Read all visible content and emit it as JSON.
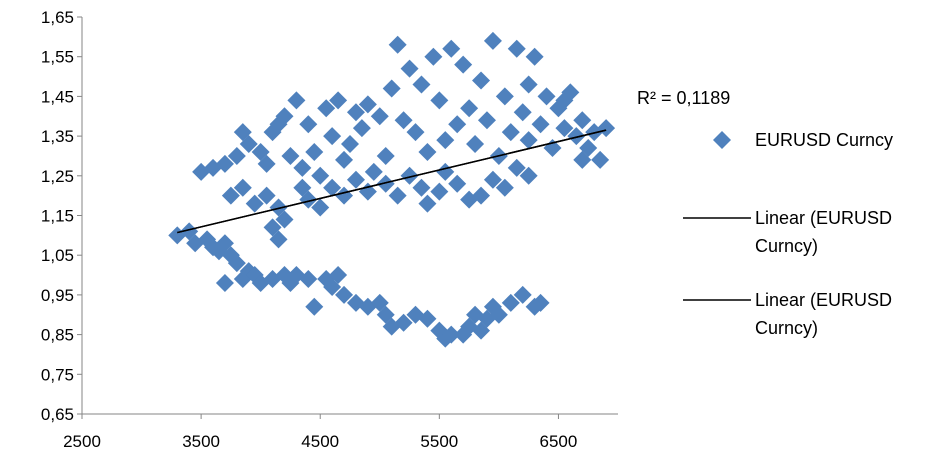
{
  "chart_data": {
    "type": "scatter",
    "xlim": [
      2500,
      7000
    ],
    "ylim": [
      0.65,
      1.65
    ],
    "x_ticks": [
      "2500",
      "3500",
      "4500",
      "5500",
      "6500"
    ],
    "x_tick_values": [
      2500,
      3500,
      4500,
      5500,
      6500
    ],
    "y_ticks": [
      "0,65",
      "0,75",
      "0,85",
      "0,95",
      "1,05",
      "1,15",
      "1,25",
      "1,35",
      "1,45",
      "1,55",
      "1,65"
    ],
    "y_tick_values": [
      0.65,
      0.75,
      0.85,
      0.95,
      1.05,
      1.15,
      1.25,
      1.35,
      1.45,
      1.55,
      1.65
    ],
    "grid": false,
    "legend_position": "right",
    "series": [
      {
        "name": "EURUSD Curncy",
        "marker": "diamond",
        "color": "#4f81bd",
        "points": [
          [
            3300,
            1.1
          ],
          [
            3400,
            1.11
          ],
          [
            3450,
            1.08
          ],
          [
            3550,
            1.09
          ],
          [
            3600,
            1.07
          ],
          [
            3650,
            1.06
          ],
          [
            3700,
            1.08
          ],
          [
            3750,
            1.05
          ],
          [
            3800,
            1.03
          ],
          [
            3900,
            1.01
          ],
          [
            3850,
            0.99
          ],
          [
            3700,
            0.98
          ],
          [
            3950,
            1.0
          ],
          [
            4000,
            0.98
          ],
          [
            4100,
            0.99
          ],
          [
            4200,
            1.0
          ],
          [
            4250,
            0.98
          ],
          [
            4300,
            1.0
          ],
          [
            4400,
            0.99
          ],
          [
            4450,
            0.92
          ],
          [
            4550,
            0.99
          ],
          [
            4600,
            0.97
          ],
          [
            4650,
            1.0
          ],
          [
            4700,
            0.95
          ],
          [
            4800,
            0.93
          ],
          [
            4900,
            0.92
          ],
          [
            5000,
            0.93
          ],
          [
            5050,
            0.9
          ],
          [
            5100,
            0.87
          ],
          [
            5200,
            0.88
          ],
          [
            5300,
            0.9
          ],
          [
            5400,
            0.89
          ],
          [
            5500,
            0.86
          ],
          [
            5550,
            0.84
          ],
          [
            5600,
            0.85
          ],
          [
            5700,
            0.85
          ],
          [
            5750,
            0.87
          ],
          [
            5800,
            0.9
          ],
          [
            5850,
            0.86
          ],
          [
            5900,
            0.89
          ],
          [
            5950,
            0.92
          ],
          [
            6000,
            0.9
          ],
          [
            6100,
            0.93
          ],
          [
            6200,
            0.95
          ],
          [
            6300,
            0.92
          ],
          [
            6350,
            0.93
          ],
          [
            3500,
            1.26
          ],
          [
            3600,
            1.27
          ],
          [
            3700,
            1.28
          ],
          [
            3800,
            1.3
          ],
          [
            3850,
            1.36
          ],
          [
            3900,
            1.33
          ],
          [
            4000,
            1.31
          ],
          [
            4050,
            1.28
          ],
          [
            4100,
            1.36
          ],
          [
            4150,
            1.38
          ],
          [
            4200,
            1.4
          ],
          [
            4300,
            1.44
          ],
          [
            4250,
            1.3
          ],
          [
            4350,
            1.27
          ],
          [
            4400,
            1.38
          ],
          [
            4450,
            1.31
          ],
          [
            4500,
            1.25
          ],
          [
            4550,
            1.42
          ],
          [
            4600,
            1.35
          ],
          [
            4650,
            1.44
          ],
          [
            4700,
            1.29
          ],
          [
            4750,
            1.33
          ],
          [
            4800,
            1.41
          ],
          [
            4850,
            1.37
          ],
          [
            4900,
            1.43
          ],
          [
            4950,
            1.26
          ],
          [
            5000,
            1.4
          ],
          [
            5050,
            1.3
          ],
          [
            5100,
            1.47
          ],
          [
            5150,
            1.58
          ],
          [
            5200,
            1.39
          ],
          [
            5250,
            1.52
          ],
          [
            5300,
            1.36
          ],
          [
            5350,
            1.48
          ],
          [
            5400,
            1.31
          ],
          [
            5450,
            1.55
          ],
          [
            5500,
            1.44
          ],
          [
            5550,
            1.34
          ],
          [
            5600,
            1.57
          ],
          [
            5650,
            1.38
          ],
          [
            5700,
            1.53
          ],
          [
            5750,
            1.42
          ],
          [
            5800,
            1.33
          ],
          [
            5850,
            1.49
          ],
          [
            5900,
            1.39
          ],
          [
            5950,
            1.59
          ],
          [
            6000,
            1.3
          ],
          [
            6050,
            1.45
          ],
          [
            6100,
            1.36
          ],
          [
            6150,
            1.57
          ],
          [
            6200,
            1.41
          ],
          [
            6250,
            1.34
          ],
          [
            6300,
            1.55
          ],
          [
            6350,
            1.38
          ],
          [
            6400,
            1.45
          ],
          [
            6450,
            1.32
          ],
          [
            6500,
            1.42
          ],
          [
            6550,
            1.37
          ],
          [
            6600,
            1.46
          ],
          [
            6650,
            1.35
          ],
          [
            6700,
            1.39
          ],
          [
            6750,
            1.32
          ],
          [
            6800,
            1.36
          ],
          [
            6850,
            1.29
          ],
          [
            6900,
            1.37
          ],
          [
            6700,
            1.29
          ],
          [
            6550,
            1.44
          ],
          [
            6250,
            1.48
          ],
          [
            3750,
            1.2
          ],
          [
            3850,
            1.22
          ],
          [
            3950,
            1.18
          ],
          [
            4050,
            1.2
          ],
          [
            4150,
            1.17
          ],
          [
            4100,
            1.12
          ],
          [
            4150,
            1.09
          ],
          [
            4200,
            1.14
          ],
          [
            4350,
            1.22
          ],
          [
            4400,
            1.19
          ],
          [
            4500,
            1.17
          ],
          [
            4600,
            1.22
          ],
          [
            4700,
            1.2
          ],
          [
            4800,
            1.24
          ],
          [
            4900,
            1.21
          ],
          [
            5050,
            1.23
          ],
          [
            5150,
            1.2
          ],
          [
            5250,
            1.25
          ],
          [
            5350,
            1.22
          ],
          [
            5400,
            1.18
          ],
          [
            5500,
            1.21
          ],
          [
            5550,
            1.26
          ],
          [
            5650,
            1.23
          ],
          [
            5750,
            1.19
          ],
          [
            5850,
            1.2
          ],
          [
            5950,
            1.24
          ],
          [
            6050,
            1.22
          ],
          [
            6150,
            1.27
          ],
          [
            6250,
            1.25
          ]
        ]
      }
    ],
    "trendlines": [
      {
        "name": "Linear (EURUSD Curncy)",
        "x": [
          3300,
          6900
        ],
        "y": [
          1.107,
          1.365
        ],
        "color": "#000000",
        "r_squared_label": "R² = 0,1189"
      },
      {
        "name": "Linear (EURUSD Curncy)",
        "x": [
          3300,
          6900
        ],
        "y": [
          1.107,
          1.365
        ],
        "color": "#000000"
      }
    ]
  },
  "legend": {
    "r_squared": "R² = 0,1189",
    "entries": [
      {
        "label_lines": [
          "EURUSD Curncy"
        ],
        "symbol": "diamond",
        "color": "#4f81bd"
      },
      {
        "label_lines": [
          "Linear (EURUSD",
          "Curncy)"
        ],
        "symbol": "line",
        "color": "#000000"
      },
      {
        "label_lines": [
          "Linear (EURUSD",
          "Curncy)"
        ],
        "symbol": "line",
        "color": "#000000"
      }
    ]
  }
}
